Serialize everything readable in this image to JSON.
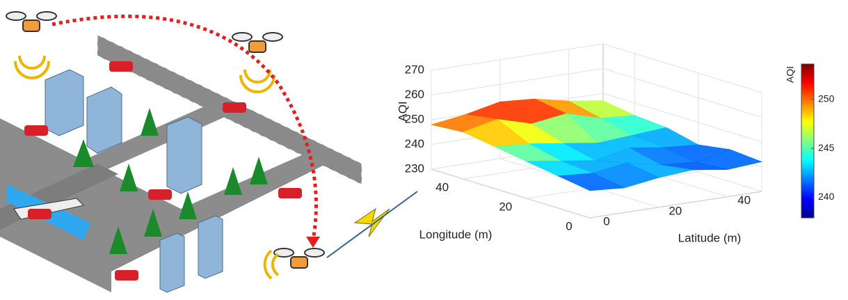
{
  "chart_data": {
    "type": "surface",
    "zlabel": "AQI",
    "xlabel": "Longitude (m)",
    "ylabel": "Latitude (m)",
    "x": [
      0,
      10,
      20,
      30,
      40,
      50
    ],
    "y": [
      0,
      10,
      20,
      30,
      40,
      50
    ],
    "z": [
      [
        241,
        240,
        242,
        243,
        241,
        242
      ],
      [
        243,
        242,
        244,
        241,
        240,
        243
      ],
      [
        245,
        243,
        241,
        244,
        242,
        241
      ],
      [
        247,
        246,
        244,
        242,
        243,
        244
      ],
      [
        249,
        252,
        248,
        250,
        246,
        245
      ],
      [
        248,
        250,
        253,
        252,
        249,
        247
      ]
    ],
    "xlim": [
      0,
      50
    ],
    "ylim": [
      0,
      50
    ],
    "zlim": [
      230,
      270
    ],
    "xticks": [
      0,
      20,
      40
    ],
    "yticks": [
      0,
      20,
      40
    ],
    "zticks": [
      230,
      240,
      250,
      260,
      270
    ],
    "grid": true,
    "colorbar": {
      "label": "AQI",
      "lim": [
        237.9,
        253.6
      ],
      "ticks": [
        240,
        245,
        250
      ]
    }
  }
}
